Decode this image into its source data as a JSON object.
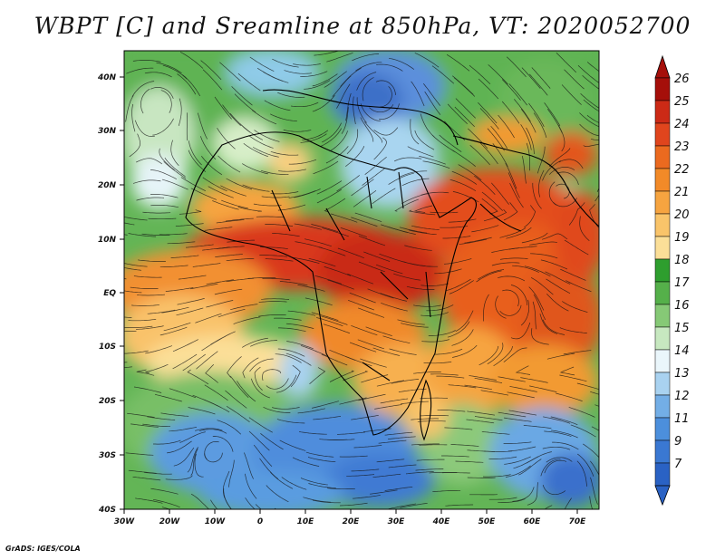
{
  "title": "WBPT [C] and Sreamline at 850hPa, VT: 2020052700",
  "credit": "GrADS: IGES/COLA",
  "lat_labels": [
    "40N",
    "30N",
    "20N",
    "10N",
    "EQ",
    "10S",
    "20S",
    "30S",
    "40S"
  ],
  "lon_labels": [
    "30W",
    "20W",
    "10W",
    "0",
    "10E",
    "20E",
    "30E",
    "40E",
    "50E",
    "60E",
    "70E"
  ],
  "colorbar": {
    "labels": [
      "26",
      "25",
      "24",
      "23",
      "22",
      "21",
      "20",
      "19",
      "18",
      "17",
      "16",
      "15",
      "14",
      "13",
      "12",
      "11",
      "9",
      "7"
    ],
    "colors": [
      "#a50f0a",
      "#cc2a16",
      "#e0451d",
      "#eb6a1f",
      "#f28a28",
      "#f6a440",
      "#f9c46a",
      "#fbdf98",
      "#2e9e2e",
      "#55b04a",
      "#86c976",
      "#c7e8c0",
      "#eaf6fb",
      "#a9d2f0",
      "#73aee6",
      "#4c8fdc",
      "#3a78d2",
      "#2a62c4"
    ]
  }
}
